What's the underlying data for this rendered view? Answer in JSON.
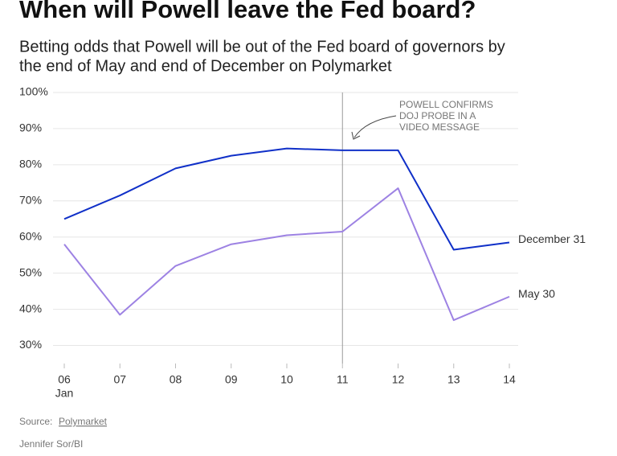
{
  "chart_data": {
    "type": "line",
    "title": "When will Powell leave the Fed board?",
    "subtitle": [
      "Betting odds that Powell will be out of the Fed board of governors by",
      "the end of May and end of December on Polymarket"
    ],
    "categories": [
      "06",
      "07",
      "08",
      "09",
      "10",
      "11",
      "12",
      "13",
      "14"
    ],
    "x_sublabel": "Jan",
    "series": [
      {
        "name": "December 31",
        "color": "#1030c8",
        "values": [
          65,
          71.5,
          79,
          82.5,
          84.5,
          84,
          84,
          56.5,
          58.5
        ]
      },
      {
        "name": "May 30",
        "color": "#9d82e3",
        "values": [
          58,
          38.5,
          52,
          58,
          60.5,
          61.5,
          73.5,
          37,
          43.5
        ]
      }
    ],
    "ylim": [
      25,
      100
    ],
    "yticks": [
      {
        "value": 30,
        "label": "30%"
      },
      {
        "value": 40,
        "label": "40%"
      },
      {
        "value": 50,
        "label": "50%"
      },
      {
        "value": 60,
        "label": "60%"
      },
      {
        "value": 70,
        "label": "70%"
      },
      {
        "value": 80,
        "label": "80%"
      },
      {
        "value": 90,
        "label": "90%"
      },
      {
        "value": 100,
        "label": "100%"
      }
    ],
    "grid": true,
    "annotation": {
      "x": "11",
      "lines": [
        "POWELL CONFIRMS",
        "DOJ PROBE IN A",
        "VIDEO MESSAGE"
      ]
    },
    "source_label": "Source:",
    "source": "Polymarket",
    "credit": "Jennifer Sor/BI"
  }
}
